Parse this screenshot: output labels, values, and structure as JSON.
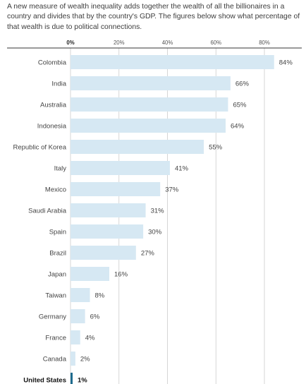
{
  "intro": "A new measure of wealth inequality adds together the wealth of all the billionaires in a country and divides that by the country's GDP. The figures below show what percentage of that wealth is due to political connections.",
  "colors": {
    "bar": "#d6e8f3",
    "highlight_bar": "#1f6b8e",
    "gridline": "#cccccc",
    "axis_line": "#333333"
  },
  "chart_data": {
    "type": "bar",
    "orientation": "horizontal",
    "title": "",
    "xlabel": "",
    "ylabel": "",
    "xlim": [
      0,
      84
    ],
    "grid": true,
    "x_ticks": [
      {
        "value": 0,
        "label": "0%"
      },
      {
        "value": 20,
        "label": "20%"
      },
      {
        "value": 40,
        "label": "40%"
      },
      {
        "value": 60,
        "label": "60%"
      },
      {
        "value": 80,
        "label": "80%"
      }
    ],
    "categories": [
      "Colombia",
      "India",
      "Australia",
      "Indonesia",
      "Republic of Korea",
      "Italy",
      "Mexico",
      "Saudi Arabia",
      "Spain",
      "Brazil",
      "Japan",
      "Taiwan",
      "Germany",
      "France",
      "Canada",
      "United States"
    ],
    "values": [
      84,
      66,
      65,
      64,
      55,
      41,
      37,
      31,
      30,
      27,
      16,
      8,
      6,
      4,
      2,
      1
    ],
    "value_labels": [
      "84%",
      "66%",
      "65%",
      "64%",
      "55%",
      "41%",
      "37%",
      "31%",
      "30%",
      "27%",
      "16%",
      "8%",
      "6%",
      "4%",
      "2%",
      "1%"
    ],
    "highlight": "United States"
  }
}
